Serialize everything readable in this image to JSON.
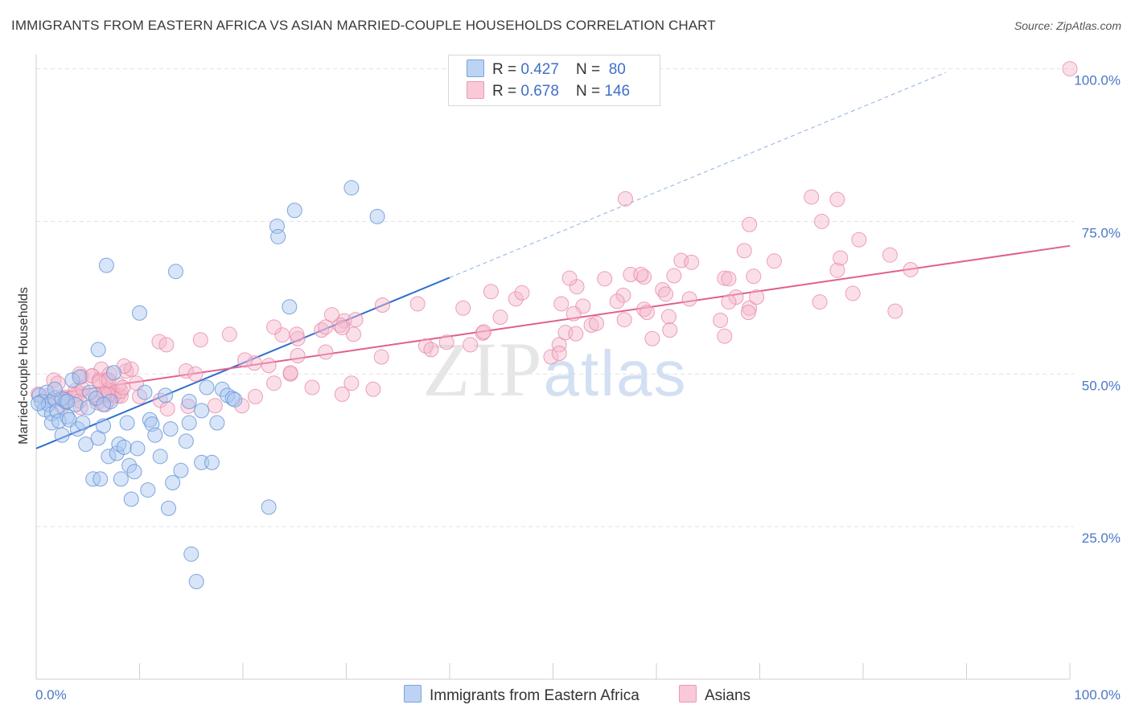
{
  "header": {
    "title": "IMMIGRANTS FROM EASTERN AFRICA VS ASIAN MARRIED-COUPLE HOUSEHOLDS CORRELATION CHART",
    "source": "Source: ZipAtlas.com"
  },
  "legend": {
    "rows": [
      {
        "r_label": "R = ",
        "r_value": "0.427",
        "n_label": "N = ",
        "n_value": "80"
      },
      {
        "r_label": "R = ",
        "r_value": "0.678",
        "n_label": "N = ",
        "n_value": "146"
      }
    ]
  },
  "bottom_legend": {
    "series1": "Immigrants from Eastern Africa",
    "series2": "Asians"
  },
  "colors": {
    "blue_fill": "#a9c6f0",
    "blue_stroke": "#6a98d8",
    "blue_line": "#2f6fcf",
    "pink_fill": "#f5b8cb",
    "pink_stroke": "#e88aa8",
    "pink_line": "#e0608e",
    "tick_text": "#4a78c7",
    "grid": "#e2e2e2"
  },
  "chart_data": {
    "type": "scatter",
    "title": "IMMIGRANTS FROM EASTERN AFRICA VS ASIAN MARRIED-COUPLE HOUSEHOLDS CORRELATION CHART",
    "xlabel": "",
    "ylabel": "Married-couple Households",
    "xlim": [
      0,
      100
    ],
    "ylim": [
      0,
      101
    ],
    "x_ticks": [
      "0.0%",
      "100.0%"
    ],
    "y_ticks": [
      {
        "value": 25,
        "label": "25.0%"
      },
      {
        "value": 50,
        "label": "50.0%"
      },
      {
        "value": 75,
        "label": "75.0%"
      },
      {
        "value": 100,
        "label": "100.0%"
      }
    ],
    "grid": true,
    "watermark": "ZIPatlas",
    "series": [
      {
        "name": "Immigrants from Eastern Africa",
        "color": "#a9c6f0",
        "r": 0.427,
        "n": 80,
        "trend": {
          "x0": 0,
          "y0": 37.8,
          "x1": 40,
          "y1": 65.8,
          "dashed_to_x": 88,
          "dashed_to_y": 99.4
        },
        "points": [
          [
            0.3,
            46.5
          ],
          [
            0.5,
            45.5
          ],
          [
            0.8,
            44.2
          ],
          [
            1,
            47
          ],
          [
            1.2,
            45
          ],
          [
            1.5,
            43.5
          ],
          [
            1.5,
            42
          ],
          [
            1.8,
            46
          ],
          [
            2,
            44
          ],
          [
            2.2,
            42.3
          ],
          [
            2.5,
            40
          ],
          [
            2.8,
            45.5
          ],
          [
            3,
            43
          ],
          [
            3.2,
            42.5
          ],
          [
            3.5,
            49
          ],
          [
            3.8,
            45
          ],
          [
            4,
            41
          ],
          [
            4.2,
            49.5
          ],
          [
            4.5,
            42
          ],
          [
            4.8,
            38.5
          ],
          [
            5,
            44.5
          ],
          [
            5.2,
            47
          ],
          [
            5.5,
            32.8
          ],
          [
            5.8,
            46
          ],
          [
            6,
            39.5
          ],
          [
            6,
            54
          ],
          [
            6.2,
            32.8
          ],
          [
            6.5,
            41.5
          ],
          [
            6.8,
            67.8
          ],
          [
            7,
            36.5
          ],
          [
            7.2,
            45.5
          ],
          [
            7.5,
            50.2
          ],
          [
            7.8,
            37
          ],
          [
            8,
            38.5
          ],
          [
            8.2,
            32.8
          ],
          [
            8.5,
            38
          ],
          [
            8.8,
            42
          ],
          [
            9,
            35
          ],
          [
            9.2,
            29.5
          ],
          [
            9.5,
            34
          ],
          [
            9.8,
            37.8
          ],
          [
            10,
            60
          ],
          [
            10.5,
            47
          ],
          [
            10.8,
            31
          ],
          [
            11,
            42.5
          ],
          [
            11.2,
            41.8
          ],
          [
            11.5,
            40
          ],
          [
            12,
            36.5
          ],
          [
            12.5,
            46.5
          ],
          [
            12.8,
            28
          ],
          [
            13,
            41
          ],
          [
            13.2,
            32.2
          ],
          [
            13.5,
            66.8
          ],
          [
            14,
            34.2
          ],
          [
            14.5,
            39
          ],
          [
            14.8,
            42
          ],
          [
            14.8,
            45.5
          ],
          [
            15,
            20.5
          ],
          [
            15.5,
            16
          ],
          [
            16,
            44
          ],
          [
            16,
            35.5
          ],
          [
            16.5,
            47.8
          ],
          [
            17,
            35.5
          ],
          [
            17.5,
            42
          ],
          [
            18,
            47.5
          ],
          [
            18.5,
            46.5
          ],
          [
            19,
            46
          ],
          [
            19.2,
            45.8
          ],
          [
            22.5,
            28.2
          ],
          [
            23.3,
            74.2
          ],
          [
            23.4,
            72.5
          ],
          [
            24.5,
            61
          ],
          [
            25,
            76.8
          ],
          [
            30.5,
            80.5
          ],
          [
            33,
            75.8
          ],
          [
            2.5,
            46
          ],
          [
            3,
            45.5
          ],
          [
            0.2,
            45.2
          ],
          [
            1.8,
            47.5
          ],
          [
            6.5,
            45
          ]
        ]
      },
      {
        "name": "Asians",
        "color": "#f5b8cb",
        "r": 0.678,
        "n": 146,
        "trend": {
          "x0": 0,
          "y0": 46.3,
          "x1": 100,
          "y1": 71
        }
      }
    ]
  }
}
